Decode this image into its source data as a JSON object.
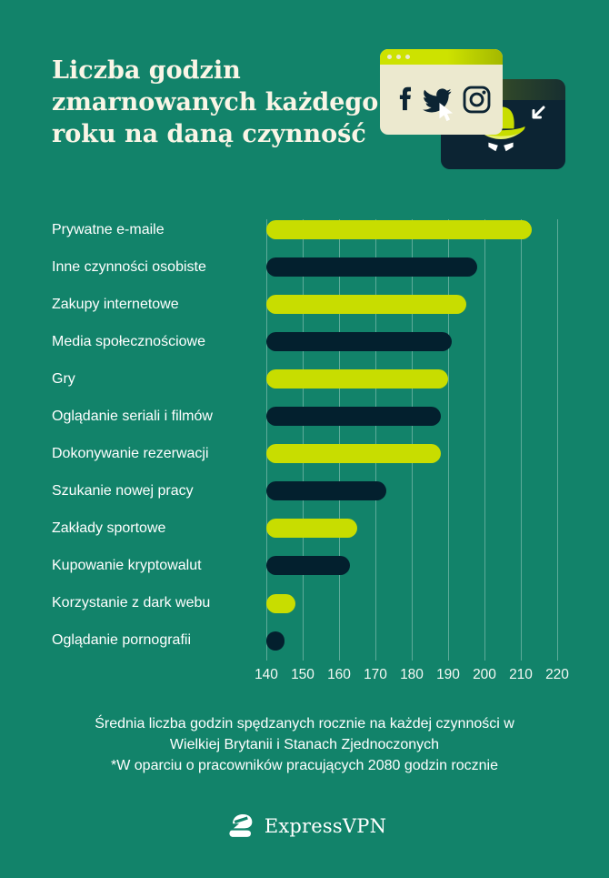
{
  "page": {
    "background_color": "#12836a",
    "title_lines": [
      "Liczba godzin",
      "zmarnowanych każdego",
      "roku na daną czynność"
    ]
  },
  "chart_data": {
    "type": "bar",
    "orientation": "horizontal",
    "title": "Liczba godzin zmarnowanych każdego roku na daną czynność",
    "categories": [
      "Prywatne e-maile",
      "Inne czynności osobiste",
      "Zakupy internetowe",
      "Media społecznościowe",
      "Gry",
      "Oglądanie seriali i filmów",
      "Dokonywanie rezerwacji",
      "Szukanie nowej pracy",
      "Zakłady sportowe",
      "Kupowanie kryptowalut",
      "Korzystanie z dark webu",
      "Oglądanie pornografii"
    ],
    "values": [
      213,
      198,
      195,
      191,
      190,
      188,
      188,
      173,
      165,
      163,
      148,
      145
    ],
    "unit": "godziny rocznie",
    "xlim": [
      140,
      220
    ],
    "x_ticks": [
      140,
      150,
      160,
      170,
      180,
      190,
      200,
      210,
      220
    ],
    "grid": "vertical",
    "legend": "none",
    "bar_colors_alternating": [
      "#c8dd00",
      "#03202e"
    ]
  },
  "footer": {
    "caption": "Średnia liczba godzin spędzanych rocznie na każdej czynności w Wielkiej Brytanii i Stanach Zjednoczonych",
    "footnote": "*W oparciu o pracowników pracujących 2080 godzin rocznie"
  },
  "logo": {
    "text": "ExpressVPN"
  },
  "illustration": {
    "browser_icons": [
      "facebook-icon",
      "twitter-icon",
      "instagram-icon"
    ],
    "spy_window": "spy-hat-with-eyes",
    "colors": {
      "cream_window": "#ece9cf",
      "dark_window": "#0c2433",
      "lime": "#c8dd00",
      "icon_navy": "#0c2433"
    }
  }
}
